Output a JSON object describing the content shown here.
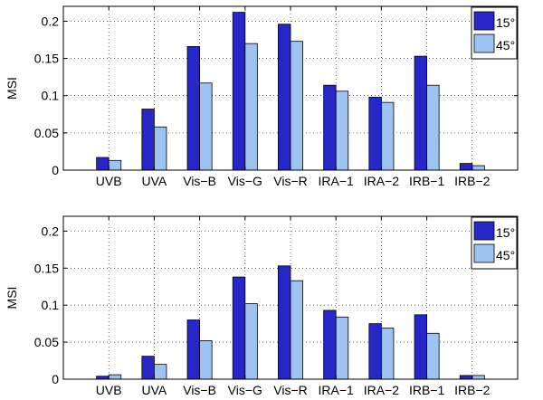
{
  "chart_data": [
    {
      "type": "bar",
      "categories": [
        "UVB",
        "UVA",
        "Vis−B",
        "Vis−G",
        "Vis−R",
        "IRA−1",
        "IRA−2",
        "IRB−1",
        "IRB−2"
      ],
      "series": [
        {
          "name": "15°",
          "color": "#2727c9",
          "values": [
            0.017,
            0.082,
            0.166,
            0.212,
            0.196,
            0.114,
            0.098,
            0.153,
            0.009
          ]
        },
        {
          "name": "45°",
          "color": "#9dc3f2",
          "values": [
            0.013,
            0.058,
            0.117,
            0.17,
            0.173,
            0.106,
            0.091,
            0.114,
            0.006
          ]
        }
      ],
      "ylabel": "MSI",
      "ylim": [
        0,
        0.22
      ],
      "yticks": [
        0,
        0.05,
        0.1,
        0.15,
        0.2
      ],
      "ytick_labels": [
        "0",
        "0.05",
        "0.1",
        "0.15",
        "0.2"
      ],
      "grid": true,
      "legend_position": "top-right"
    },
    {
      "type": "bar",
      "categories": [
        "UVB",
        "UVA",
        "Vis−B",
        "Vis−G",
        "Vis−R",
        "IRA−1",
        "IRA−2",
        "IRB−1",
        "IRB−2"
      ],
      "series": [
        {
          "name": "15°",
          "color": "#2727c9",
          "values": [
            0.004,
            0.031,
            0.08,
            0.138,
            0.153,
            0.093,
            0.075,
            0.087,
            0.005
          ]
        },
        {
          "name": "45°",
          "color": "#9dc3f2",
          "values": [
            0.006,
            0.02,
            0.052,
            0.102,
            0.133,
            0.084,
            0.069,
            0.062,
            0.005
          ]
        }
      ],
      "ylabel": "MSI",
      "ylim": [
        0,
        0.22
      ],
      "yticks": [
        0,
        0.05,
        0.1,
        0.15,
        0.2
      ],
      "ytick_labels": [
        "0",
        "0.05",
        "0.1",
        "0.15",
        "0.2"
      ],
      "grid": true,
      "legend_position": "top-right"
    }
  ]
}
